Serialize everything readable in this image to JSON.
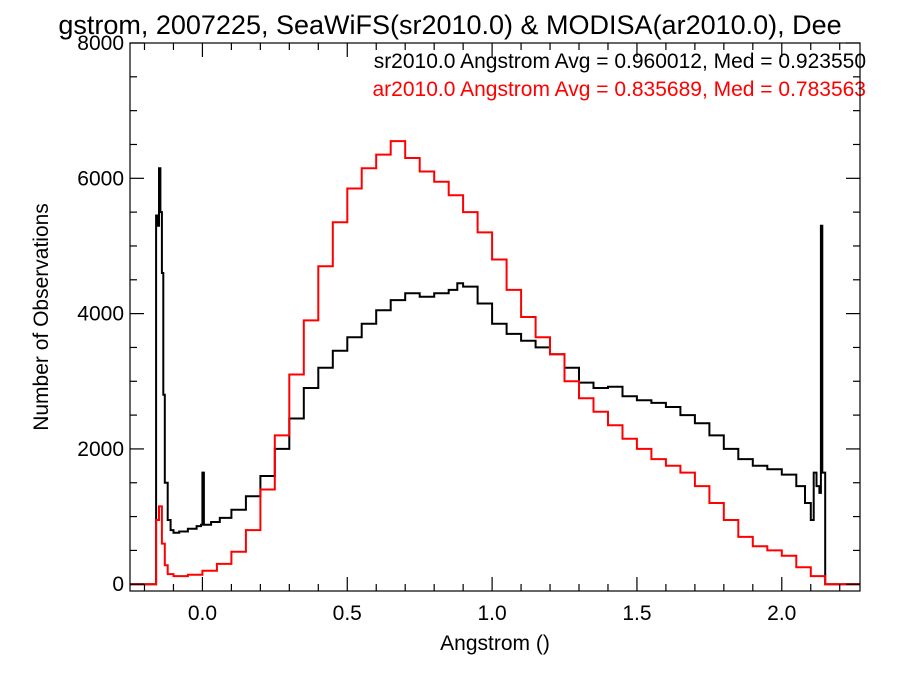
{
  "chart_data": {
    "type": "line",
    "title": "gstrom, 2007225, SeaWiFS(sr2010.0) & MODISA(ar2010.0), Dee",
    "xlabel": "Angstrom ()",
    "ylabel": "Number of Observations",
    "xlim": [
      -0.25,
      2.27
    ],
    "ylim": [
      -100,
      8000
    ],
    "x_ticks": [
      0.0,
      0.5,
      1.0,
      1.5,
      2.0
    ],
    "x_tick_labels": [
      "0.0",
      "0.5",
      "1.0",
      "1.5",
      "2.0"
    ],
    "y_ticks": [
      0,
      2000,
      4000,
      6000,
      8000
    ],
    "y_tick_labels": [
      "0",
      "2000",
      "4000",
      "6000",
      "8000"
    ],
    "grid": false,
    "step": true,
    "annotations": [
      {
        "text": "sr2010.0 Angstrom Avg = 0.960012, Med = 0.923550",
        "color": "#000000"
      },
      {
        "text": "ar2010.0 Angstrom Avg = 0.835689, Med = 0.783563",
        "color": "#ff0000"
      }
    ],
    "series": [
      {
        "color": "#000000",
        "points": [
          [
            -0.25,
            0
          ],
          [
            -0.17,
            0
          ],
          [
            -0.16,
            5450
          ],
          [
            -0.155,
            5300
          ],
          [
            -0.15,
            6150
          ],
          [
            -0.145,
            5500
          ],
          [
            -0.14,
            4600
          ],
          [
            -0.135,
            2800
          ],
          [
            -0.13,
            1500
          ],
          [
            -0.12,
            950
          ],
          [
            -0.11,
            800
          ],
          [
            -0.1,
            760
          ],
          [
            -0.08,
            780
          ],
          [
            -0.05,
            820
          ],
          [
            -0.02,
            860
          ],
          [
            -0.005,
            880
          ],
          [
            0.0,
            1650
          ],
          [
            0.005,
            880
          ],
          [
            0.03,
            920
          ],
          [
            0.06,
            980
          ],
          [
            0.1,
            1100
          ],
          [
            0.15,
            1300
          ],
          [
            0.2,
            1600
          ],
          [
            0.25,
            2000
          ],
          [
            0.3,
            2450
          ],
          [
            0.35,
            2900
          ],
          [
            0.4,
            3200
          ],
          [
            0.45,
            3450
          ],
          [
            0.5,
            3650
          ],
          [
            0.55,
            3850
          ],
          [
            0.6,
            4050
          ],
          [
            0.65,
            4200
          ],
          [
            0.7,
            4300
          ],
          [
            0.75,
            4250
          ],
          [
            0.8,
            4300
          ],
          [
            0.85,
            4350
          ],
          [
            0.88,
            4450
          ],
          [
            0.9,
            4400
          ],
          [
            0.95,
            4150
          ],
          [
            1.0,
            3850
          ],
          [
            1.05,
            3700
          ],
          [
            1.1,
            3600
          ],
          [
            1.15,
            3500
          ],
          [
            1.2,
            3400
          ],
          [
            1.25,
            3200
          ],
          [
            1.3,
            2980
          ],
          [
            1.35,
            2900
          ],
          [
            1.4,
            2920
          ],
          [
            1.45,
            2780
          ],
          [
            1.5,
            2720
          ],
          [
            1.55,
            2680
          ],
          [
            1.6,
            2620
          ],
          [
            1.65,
            2500
          ],
          [
            1.7,
            2380
          ],
          [
            1.75,
            2200
          ],
          [
            1.8,
            2000
          ],
          [
            1.85,
            1850
          ],
          [
            1.9,
            1750
          ],
          [
            1.95,
            1700
          ],
          [
            2.0,
            1620
          ],
          [
            2.05,
            1450
          ],
          [
            2.08,
            1200
          ],
          [
            2.1,
            950
          ],
          [
            2.11,
            1650
          ],
          [
            2.12,
            1450
          ],
          [
            2.13,
            1350
          ],
          [
            2.135,
            5300
          ],
          [
            2.14,
            1650
          ],
          [
            2.15,
            0
          ],
          [
            2.27,
            0
          ]
        ]
      },
      {
        "color": "#ff0000",
        "points": [
          [
            -0.25,
            0
          ],
          [
            -0.17,
            0
          ],
          [
            -0.16,
            950
          ],
          [
            -0.15,
            1150
          ],
          [
            -0.14,
            600
          ],
          [
            -0.13,
            280
          ],
          [
            -0.12,
            150
          ],
          [
            -0.1,
            120
          ],
          [
            -0.05,
            140
          ],
          [
            0.0,
            200
          ],
          [
            0.05,
            300
          ],
          [
            0.1,
            480
          ],
          [
            0.15,
            800
          ],
          [
            0.2,
            1400
          ],
          [
            0.25,
            2200
          ],
          [
            0.3,
            3100
          ],
          [
            0.35,
            3900
          ],
          [
            0.4,
            4700
          ],
          [
            0.45,
            5350
          ],
          [
            0.5,
            5850
          ],
          [
            0.55,
            6150
          ],
          [
            0.6,
            6350
          ],
          [
            0.65,
            6550
          ],
          [
            0.7,
            6300
          ],
          [
            0.75,
            6100
          ],
          [
            0.8,
            5950
          ],
          [
            0.85,
            5750
          ],
          [
            0.9,
            5500
          ],
          [
            0.95,
            5200
          ],
          [
            1.0,
            4800
          ],
          [
            1.05,
            4350
          ],
          [
            1.1,
            3950
          ],
          [
            1.15,
            3650
          ],
          [
            1.2,
            3400
          ],
          [
            1.25,
            3000
          ],
          [
            1.3,
            2750
          ],
          [
            1.35,
            2550
          ],
          [
            1.4,
            2350
          ],
          [
            1.45,
            2150
          ],
          [
            1.5,
            2000
          ],
          [
            1.55,
            1850
          ],
          [
            1.6,
            1750
          ],
          [
            1.65,
            1650
          ],
          [
            1.7,
            1450
          ],
          [
            1.75,
            1200
          ],
          [
            1.8,
            950
          ],
          [
            1.85,
            700
          ],
          [
            1.9,
            560
          ],
          [
            1.95,
            500
          ],
          [
            2.0,
            420
          ],
          [
            2.05,
            250
          ],
          [
            2.1,
            120
          ],
          [
            2.15,
            0
          ],
          [
            2.27,
            0
          ]
        ]
      }
    ]
  }
}
